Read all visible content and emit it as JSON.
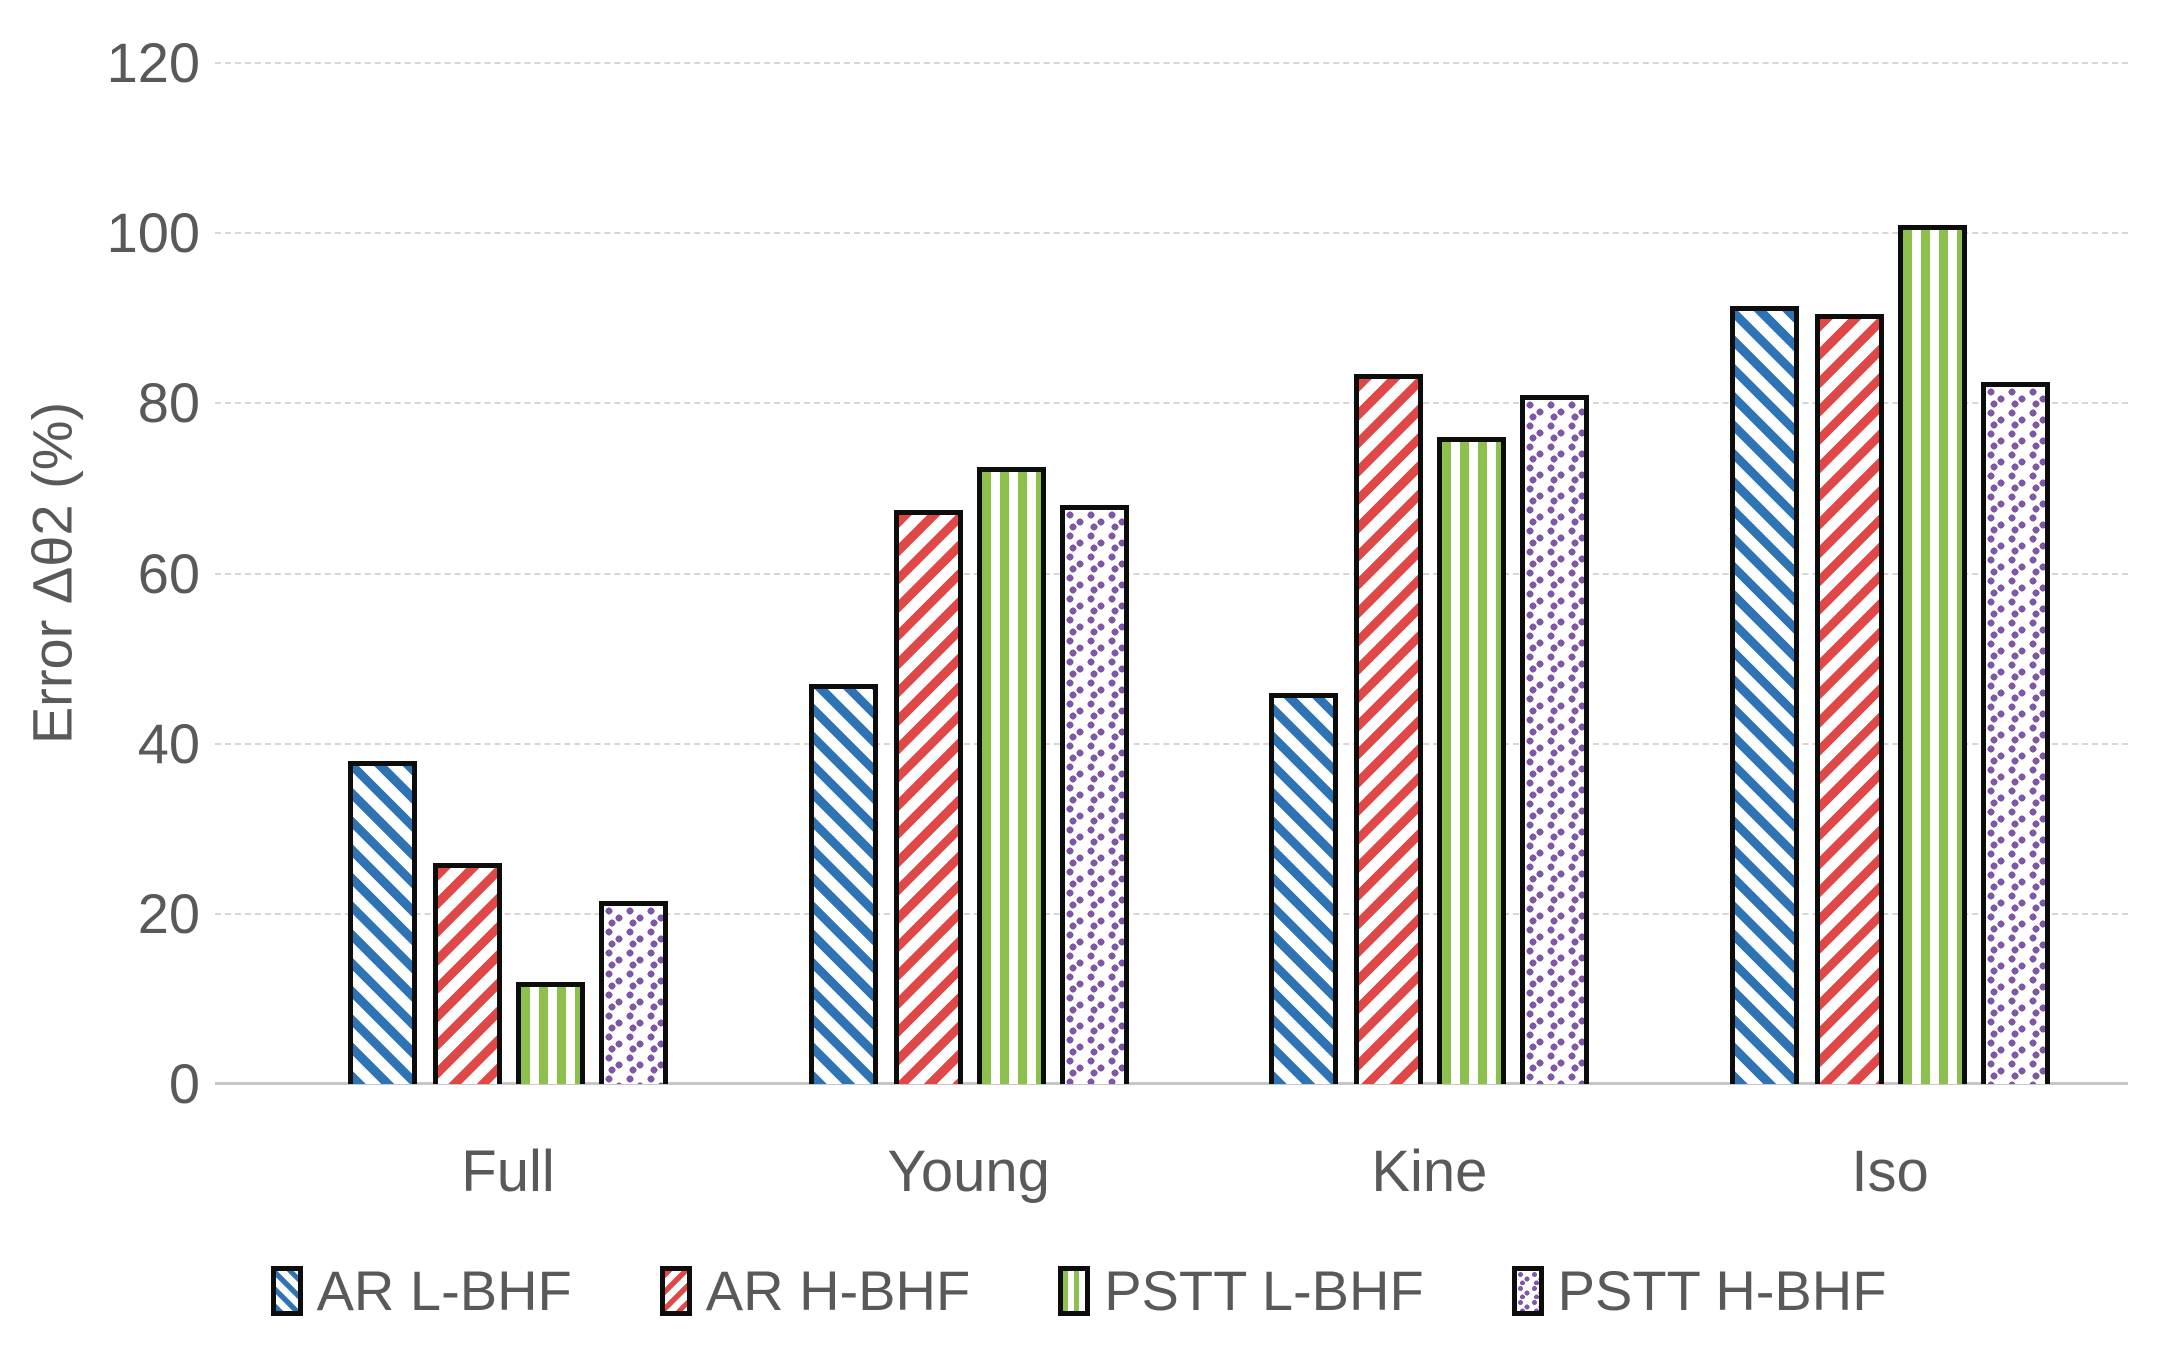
{
  "figure": {
    "background_color": "#ffffff",
    "axis_text_color": "#595959",
    "gridline_color": "#d6d6d6",
    "bar_border_color": "#0d0d0d"
  },
  "chart_data": {
    "type": "bar",
    "title": "",
    "xlabel": "",
    "ylabel": "Error Δθ2 (%)",
    "ylim": [
      0,
      120
    ],
    "yticks": [
      0,
      20,
      40,
      60,
      80,
      100,
      120
    ],
    "grid": true,
    "legend_position": "bottom",
    "categories": [
      "Full",
      "Young",
      "Kine",
      "Iso"
    ],
    "series": [
      {
        "name": "AR L-BHF",
        "color": "#2e74b5",
        "pattern": "diagonal-down-stripes",
        "values": [
          38,
          47,
          46,
          91.5
        ]
      },
      {
        "name": "AR H-BHF",
        "color": "#e04747",
        "pattern": "diagonal-up-stripes",
        "values": [
          26,
          67.5,
          83.5,
          90.5
        ]
      },
      {
        "name": "PSTT L-BHF",
        "color": "#8ec04e",
        "pattern": "vertical-stripes",
        "values": [
          12,
          72.5,
          76,
          101
        ]
      },
      {
        "name": "PSTT H-BHF",
        "color": "#7e57a7",
        "pattern": "dots",
        "values": [
          21.5,
          68,
          81,
          82.5
        ]
      }
    ]
  }
}
